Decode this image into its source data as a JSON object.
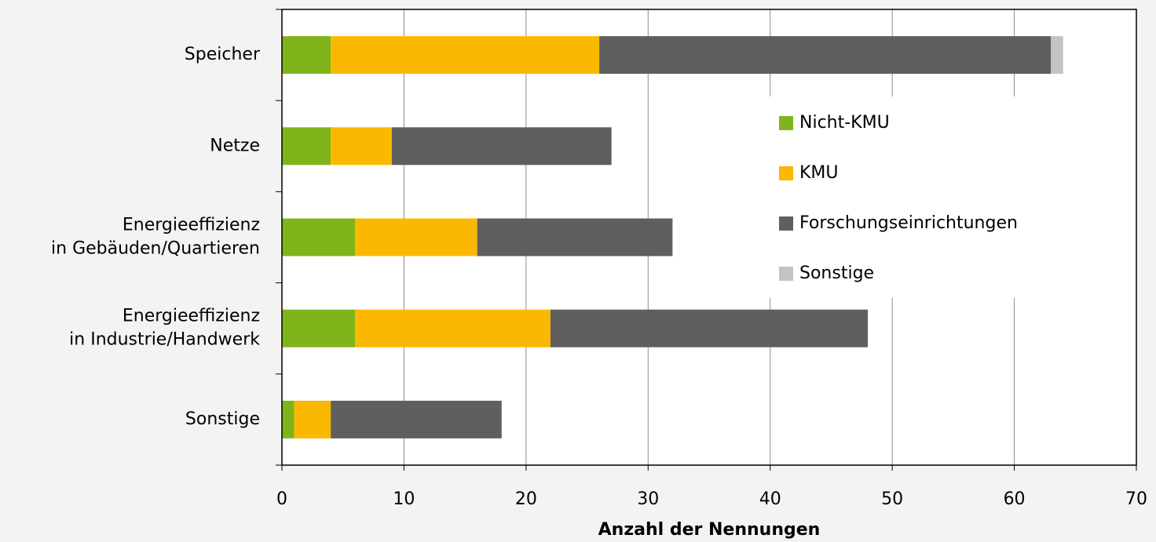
{
  "chart_data": {
    "type": "stacked_barh",
    "categories": [
      "Speicher",
      "Netze",
      "Energieeffizienz\nin Gebäuden/Quartieren",
      "Energieeffizienz\nin Industrie/Handwerk",
      "Sonstige"
    ],
    "series": [
      {
        "name": "Nicht-KMU",
        "color": "#7fb51a",
        "values": [
          4,
          4,
          6,
          6,
          1
        ]
      },
      {
        "name": "KMU",
        "color": "#fbb800",
        "values": [
          22,
          5,
          10,
          16,
          3
        ]
      },
      {
        "name": "Forschungseinrichtungen",
        "color": "#5f5f5f",
        "values": [
          37,
          18,
          16,
          26,
          14
        ]
      },
      {
        "name": "Sonstige",
        "color": "#c3c3c3",
        "values": [
          1,
          0,
          0,
          0,
          0
        ]
      }
    ],
    "xlabel": "Anzahl der Nennungen",
    "xlim": [
      0,
      70
    ],
    "xticks": [
      0,
      10,
      20,
      30,
      40,
      50,
      60,
      70
    ],
    "grid": true,
    "legend": "right"
  }
}
